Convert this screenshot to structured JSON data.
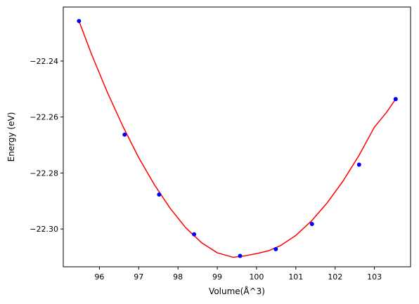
{
  "chart_data": {
    "type": "scatter",
    "title": "",
    "xlabel": "Volume(Å^3)",
    "ylabel": "Energy (eV)",
    "xlim": [
      95.08,
      103.92
    ],
    "ylim": [
      -22.3135,
      -22.2207
    ],
    "xticks": [
      96,
      97,
      98,
      99,
      100,
      101,
      102,
      103
    ],
    "yticks": [
      -22.3,
      -22.28,
      -22.26,
      -22.24
    ],
    "xtick_labels": [
      "96",
      "97",
      "98",
      "99",
      "100",
      "101",
      "102",
      "103"
    ],
    "ytick_labels": [
      "−22.30",
      "−22.28",
      "−22.26",
      "−22.24"
    ],
    "grid": false,
    "legend": "none",
    "series": [
      {
        "kind": "markers",
        "color": "#0000ff",
        "x": [
          95.48,
          96.64,
          97.52,
          98.41,
          99.58,
          100.49,
          101.41,
          102.61,
          103.54
        ],
        "y": [
          -22.2257,
          -22.2663,
          -22.2877,
          -22.3019,
          -22.3096,
          -22.3072,
          -22.2982,
          -22.277,
          -22.2536
        ]
      },
      {
        "kind": "fit-curve",
        "color": "#ff0000",
        "x": [
          95.48,
          95.8,
          96.2,
          96.6,
          97.0,
          97.4,
          97.8,
          98.2,
          98.6,
          99.0,
          99.4,
          99.7,
          100.0,
          100.3,
          100.6,
          101.0,
          101.4,
          101.8,
          102.2,
          102.6,
          103.0,
          103.3,
          103.54
        ],
        "y": [
          -22.2257,
          -22.2376,
          -22.2511,
          -22.2634,
          -22.2745,
          -22.2842,
          -22.2926,
          -22.2996,
          -22.3049,
          -22.3085,
          -22.3101,
          -22.3096,
          -22.3088,
          -22.3078,
          -22.306,
          -22.3023,
          -22.2971,
          -22.2906,
          -22.2829,
          -22.2739,
          -22.2636,
          -22.2585,
          -22.2536
        ]
      }
    ]
  }
}
